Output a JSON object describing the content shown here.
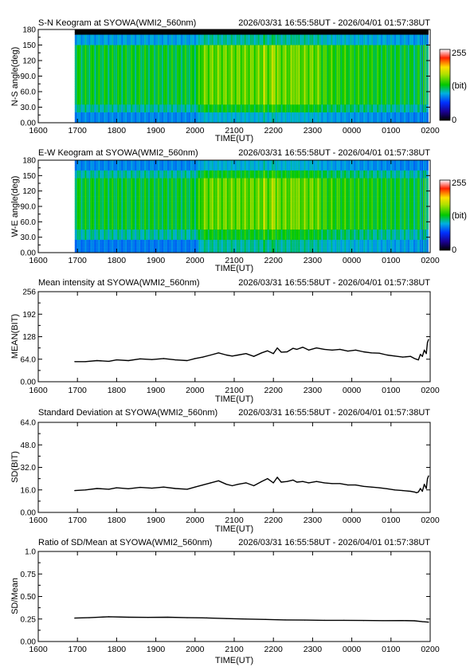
{
  "header_range": "2026/03/31 16:55:58UT - 2026/04/01 01:57:38UT",
  "station": "SYOWA",
  "chart_data": [
    {
      "type": "heatmap",
      "id": "sn",
      "title": "S-N Keogram at SYOWA(WMI2_560nm)",
      "subtitle": "2026/03/31 16:55:58UT - 2026/04/01 01:57:38UT",
      "xlabel": "TIME(UT)",
      "ylabel": "N-S angle(deg)",
      "xticks": [
        "1600",
        "1700",
        "1800",
        "1900",
        "2000",
        "2100",
        "2200",
        "2300",
        "0000",
        "0100",
        "0200"
      ],
      "yticks": [
        "0.00",
        "30.0",
        "60.0",
        "90.0",
        "120",
        "150",
        "180"
      ],
      "xlim_hours": [
        16,
        26
      ],
      "ylim": [
        0,
        180
      ],
      "data_start_hours": 16.93,
      "data_end_hours": 25.96,
      "colorbar": {
        "max_label": "255",
        "unit_label": "(bit)",
        "min_label": "0",
        "range": [
          0,
          255
        ]
      }
    },
    {
      "type": "heatmap",
      "id": "ew",
      "title": "E-W Keogram at SYOWA(WMI2_560nm)",
      "subtitle": "2026/03/31 16:55:58UT - 2026/04/01 01:57:38UT",
      "xlabel": "TIME(UT)",
      "ylabel": "W-E angle(deg)",
      "xticks": [
        "1600",
        "1700",
        "1800",
        "1900",
        "2000",
        "2100",
        "2200",
        "2300",
        "0000",
        "0100",
        "0200"
      ],
      "yticks": [
        "0.00",
        "30.0",
        "60.0",
        "90.0",
        "120",
        "150",
        "180"
      ],
      "xlim_hours": [
        16,
        26
      ],
      "ylim": [
        0,
        180
      ],
      "data_start_hours": 16.93,
      "data_end_hours": 25.96,
      "colorbar": {
        "max_label": "255",
        "unit_label": "(bit)",
        "min_label": "0",
        "range": [
          0,
          255
        ]
      }
    },
    {
      "type": "line",
      "id": "mean",
      "title": "Mean intensity at SYOWA(WMI2_560nm)",
      "subtitle": "2026/03/31 16:55:58UT - 2026/04/01 01:57:38UT",
      "xlabel": "TIME(UT)",
      "ylabel": "MEAN(BIT)",
      "xticks": [
        "1600",
        "1700",
        "1800",
        "1900",
        "2000",
        "2100",
        "2200",
        "2300",
        "0000",
        "0100",
        "0200"
      ],
      "yticks": [
        "0.00",
        "64.0",
        "128",
        "192",
        "256"
      ],
      "xlim_hours": [
        16,
        26
      ],
      "ylim": [
        0,
        256
      ],
      "x": [
        16.93,
        17.2,
        17.5,
        17.8,
        18.0,
        18.3,
        18.6,
        18.9,
        19.2,
        19.5,
        19.8,
        20.0,
        20.2,
        20.4,
        20.6,
        20.8,
        20.95,
        21.1,
        21.3,
        21.5,
        21.7,
        21.85,
        22.0,
        22.1,
        22.2,
        22.35,
        22.5,
        22.6,
        22.75,
        22.9,
        23.1,
        23.3,
        23.5,
        23.7,
        23.9,
        24.1,
        24.3,
        24.5,
        24.7,
        24.9,
        25.1,
        25.3,
        25.5,
        25.6,
        25.65,
        25.7,
        25.75,
        25.8,
        25.85,
        25.9,
        25.93,
        25.96
      ],
      "y": [
        57,
        57,
        60,
        58,
        62,
        60,
        65,
        63,
        66,
        62,
        60,
        66,
        70,
        76,
        82,
        76,
        73,
        76,
        80,
        72,
        82,
        88,
        80,
        96,
        84,
        85,
        95,
        92,
        98,
        90,
        96,
        92,
        90,
        92,
        87,
        90,
        85,
        82,
        81,
        76,
        73,
        70,
        72,
        66,
        64,
        62,
        78,
        72,
        90,
        80,
        112,
        120
      ]
    },
    {
      "type": "line",
      "id": "sd",
      "title": "Standard Deviation at SYOWA(WMI2_560nm)",
      "subtitle": "2026/03/31 16:55:58UT - 2026/04/01 01:57:38UT",
      "xlabel": "TIME(UT)",
      "ylabel": "SD(BIT)",
      "xticks": [
        "1600",
        "1700",
        "1800",
        "1900",
        "2000",
        "2100",
        "2200",
        "2300",
        "0000",
        "0100",
        "0200"
      ],
      "yticks": [
        "0.00",
        "16.0",
        "32.0",
        "48.0",
        "64.0"
      ],
      "xlim_hours": [
        16,
        26
      ],
      "ylim": [
        0,
        64
      ],
      "x": [
        16.93,
        17.2,
        17.5,
        17.8,
        18.0,
        18.3,
        18.6,
        18.9,
        19.2,
        19.5,
        19.8,
        20.0,
        20.2,
        20.4,
        20.6,
        20.8,
        20.95,
        21.1,
        21.3,
        21.5,
        21.7,
        21.85,
        22.0,
        22.1,
        22.2,
        22.35,
        22.5,
        22.6,
        22.75,
        22.9,
        23.1,
        23.3,
        23.5,
        23.7,
        23.9,
        24.1,
        24.3,
        24.5,
        24.7,
        24.9,
        25.1,
        25.3,
        25.5,
        25.6,
        25.65,
        25.7,
        25.75,
        25.8,
        25.85,
        25.9,
        25.93,
        25.96
      ],
      "y": [
        15.5,
        16,
        17,
        16.5,
        17.5,
        16.8,
        17.8,
        17.2,
        18,
        17,
        16.5,
        18,
        19.5,
        21,
        22.5,
        20,
        19,
        20,
        21,
        19,
        22,
        24,
        21,
        25,
        21.5,
        22,
        23,
        21.5,
        22,
        21,
        22,
        21,
        20.5,
        20.5,
        19.5,
        19.5,
        18.5,
        18,
        17.5,
        16.8,
        16,
        15.5,
        15,
        14.5,
        14,
        14.5,
        17,
        15,
        20,
        17,
        24,
        26
      ]
    },
    {
      "type": "line",
      "id": "ratio",
      "title": "Ratio of SD/Mean at SYOWA(WMI2_560nm)",
      "subtitle": "2026/03/31 16:55:58UT - 2026/04/01 01:57:38UT",
      "xlabel": "TIME(UT)",
      "ylabel": "SD/Mean",
      "xticks": [
        "1600",
        "1700",
        "1800",
        "1900",
        "2000",
        "2100",
        "2200",
        "2300",
        "0000",
        "0100",
        "0200"
      ],
      "yticks": [
        "0.00",
        "0.25",
        "0.50",
        "0.75",
        "1.0"
      ],
      "xlim_hours": [
        16,
        26
      ],
      "ylim": [
        0,
        1
      ],
      "x": [
        16.93,
        17.3,
        17.8,
        18.3,
        18.8,
        19.3,
        19.8,
        20.3,
        20.8,
        21.3,
        21.8,
        22.3,
        22.8,
        23.3,
        23.8,
        24.3,
        24.8,
        25.3,
        25.6,
        25.8,
        25.96
      ],
      "y": [
        0.26,
        0.265,
        0.275,
        0.27,
        0.268,
        0.27,
        0.265,
        0.262,
        0.255,
        0.25,
        0.245,
        0.24,
        0.238,
        0.235,
        0.235,
        0.234,
        0.232,
        0.233,
        0.23,
        0.22,
        0.215
      ]
    }
  ]
}
